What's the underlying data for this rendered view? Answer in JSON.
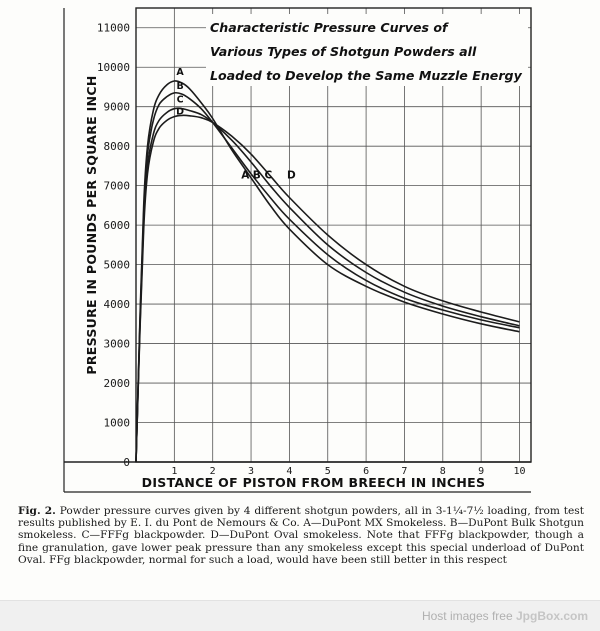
{
  "chart_data": {
    "type": "line",
    "title_lines": [
      "Characteristic Pressure Curves of",
      "Various Types of Shotgun Powders all",
      "Loaded to Develop the Same Muzzle Energy"
    ],
    "xlabel": "DISTANCE OF PISTON FROM BREECH IN INCHES",
    "ylabel": "PRESSURE IN POUNDS PER SQUARE INCH",
    "xlim": [
      0,
      10.3
    ],
    "ylim": [
      0,
      11500
    ],
    "x_ticks": [
      "1",
      "2",
      "3",
      "4",
      "5",
      "6",
      "7",
      "8",
      "9",
      "10"
    ],
    "y_ticks": [
      "0",
      "1000",
      "2000",
      "3000",
      "4000",
      "5000",
      "6000",
      "7000",
      "8000",
      "9000",
      "10000",
      "11000"
    ],
    "grid": true,
    "series": [
      {
        "name": "A",
        "x": [
          0,
          0.1,
          0.2,
          0.3,
          0.45,
          0.6,
          0.8,
          1.0,
          1.2,
          1.4,
          1.7,
          2.0,
          2.5,
          3.0,
          3.5,
          4.0,
          5.0,
          6.0,
          7.0,
          8.0,
          9.0,
          10.0
        ],
        "values": [
          0,
          3500,
          6500,
          8000,
          8900,
          9300,
          9550,
          9650,
          9600,
          9450,
          9100,
          8700,
          7900,
          7200,
          6500,
          5900,
          5000,
          4450,
          4050,
          3750,
          3500,
          3300
        ]
      },
      {
        "name": "B",
        "x": [
          0,
          0.1,
          0.2,
          0.3,
          0.45,
          0.6,
          0.8,
          1.0,
          1.2,
          1.4,
          1.7,
          2.0,
          2.5,
          3.0,
          3.5,
          4.0,
          5.0,
          6.0,
          7.0,
          8.0,
          9.0,
          10.0
        ],
        "values": [
          0,
          3400,
          6300,
          7800,
          8650,
          9050,
          9250,
          9350,
          9320,
          9200,
          8950,
          8600,
          7950,
          7300,
          6700,
          6150,
          5250,
          4600,
          4150,
          3850,
          3600,
          3400
        ]
      },
      {
        "name": "C",
        "x": [
          0,
          0.1,
          0.2,
          0.3,
          0.45,
          0.6,
          0.8,
          1.0,
          1.2,
          1.4,
          1.7,
          2.0,
          2.5,
          3.0,
          3.5,
          4.0,
          5.0,
          6.0,
          7.0,
          8.0,
          9.0,
          10.0
        ],
        "values": [
          0,
          3300,
          6100,
          7500,
          8300,
          8650,
          8850,
          8950,
          8950,
          8900,
          8800,
          8600,
          8150,
          7600,
          7000,
          6450,
          5500,
          4800,
          4300,
          3950,
          3680,
          3450
        ]
      },
      {
        "name": "D",
        "x": [
          0,
          0.1,
          0.2,
          0.3,
          0.45,
          0.6,
          0.8,
          1.0,
          1.2,
          1.4,
          1.7,
          2.0,
          2.5,
          3.0,
          3.5,
          4.0,
          5.0,
          6.0,
          7.0,
          8.0,
          9.0,
          10.0
        ],
        "values": [
          0,
          3200,
          5900,
          7300,
          8100,
          8450,
          8650,
          8750,
          8780,
          8770,
          8720,
          8600,
          8250,
          7800,
          7250,
          6700,
          5750,
          5000,
          4450,
          4080,
          3800,
          3550
        ]
      }
    ],
    "annotation_labels": [
      "A",
      "B",
      "C",
      "D"
    ],
    "line_color": "#1c1c1c"
  },
  "caption": {
    "lead": "Fig. 2.",
    "text": "Powder pressure curves given by 4 different shotgun powders, all in 3-1¼-7½ loading, from test results published by E. I. du Pont de Nemours & Co. A—DuPont MX Smokeless. B—DuPont Bulk Shotgun smokeless. C—FFFg blackpowder. D—DuPont Oval smokeless. Note that FFFg blackpowder, though a fine granulation, gave lower peak pressure than any smokeless except this special underload of DuPont Oval. FFg blackpowder, normal for such a load, would have been still better in this respect"
  },
  "footer": {
    "prefix": "Host images free ",
    "brand": "JpgBox.com"
  }
}
